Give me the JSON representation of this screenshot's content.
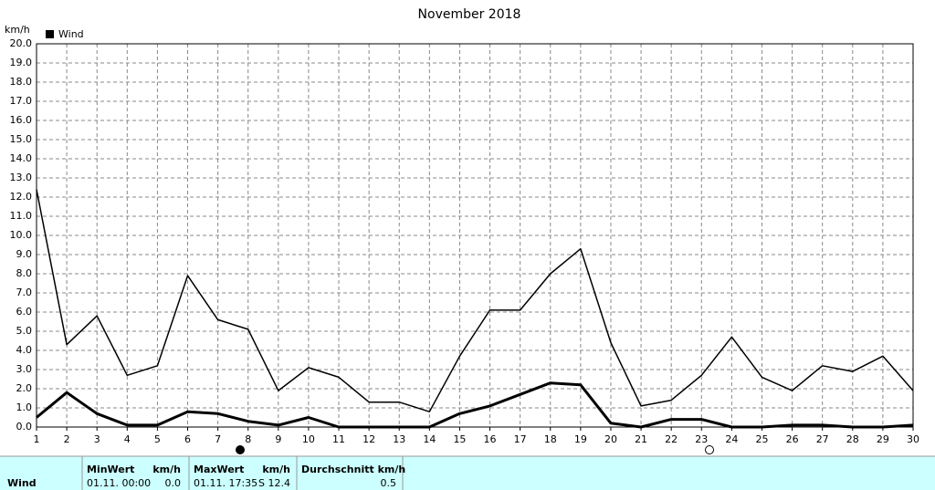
{
  "chart_data": {
    "type": "line",
    "title": "November 2018",
    "y_label": "km/h",
    "x": [
      1,
      2,
      3,
      4,
      5,
      6,
      7,
      8,
      9,
      10,
      11,
      12,
      13,
      14,
      15,
      16,
      17,
      18,
      19,
      20,
      21,
      22,
      23,
      24,
      25,
      26,
      27,
      28,
      29,
      30
    ],
    "xlim": [
      1,
      30
    ],
    "xticks": [
      1,
      2,
      3,
      4,
      5,
      6,
      7,
      8,
      9,
      10,
      11,
      12,
      13,
      14,
      15,
      16,
      17,
      18,
      19,
      20,
      21,
      22,
      23,
      24,
      25,
      26,
      27,
      28,
      29,
      30
    ],
    "ylim": [
      0,
      20
    ],
    "yticks": [
      {
        "value": 0,
        "label": "0.0"
      },
      {
        "value": 1,
        "label": "1.0"
      },
      {
        "value": 2,
        "label": "2.0"
      },
      {
        "value": 3,
        "label": "3.0"
      },
      {
        "value": 4,
        "label": "4.0"
      },
      {
        "value": 5,
        "label": "5.0"
      },
      {
        "value": 6,
        "label": "6.0"
      },
      {
        "value": 7,
        "label": "7.0"
      },
      {
        "value": 8,
        "label": "8.0"
      },
      {
        "value": 9,
        "label": "9.0"
      },
      {
        "value": 10,
        "label": "10.0"
      },
      {
        "value": 11,
        "label": "11.0"
      },
      {
        "value": 12,
        "label": "12.0"
      },
      {
        "value": 13,
        "label": "13.0"
      },
      {
        "value": 14,
        "label": "14.0"
      },
      {
        "value": 15,
        "label": "15.0"
      },
      {
        "value": 16,
        "label": "16.0"
      },
      {
        "value": 17,
        "label": "17.0"
      },
      {
        "value": 18,
        "label": "18.0"
      },
      {
        "value": 19,
        "label": "19.0"
      },
      {
        "value": 20,
        "label": "20.0"
      }
    ],
    "grid": true,
    "series": [
      {
        "name": "Wind",
        "color": "#000000",
        "width": 3,
        "values": [
          0.5,
          1.8,
          0.7,
          0.1,
          0.1,
          0.8,
          0.7,
          0.3,
          0.1,
          0.5,
          0,
          0,
          0,
          0,
          0.7,
          1.1,
          1.7,
          2.3,
          2.2,
          0.2,
          0,
          0.4,
          0.4,
          0,
          0,
          0.1,
          0.1,
          0,
          0,
          0.1
        ]
      },
      {
        "color": "#000000",
        "width": 1.5,
        "values": [
          12.4,
          4.3,
          5.8,
          2.7,
          3.2,
          7.9,
          5.6,
          5.1,
          1.9,
          3.1,
          2.6,
          1.3,
          1.3,
          0.8,
          3.7,
          6.1,
          6.1,
          8.0,
          9.3,
          4.4,
          1.1,
          1.4,
          2.7,
          4.7,
          2.6,
          1.9,
          3.2,
          2.9,
          3.7,
          1.9
        ]
      }
    ]
  },
  "table": {
    "row_label": "Wind",
    "min": {
      "header": "MinWert",
      "unit": "km/h",
      "time": "01.11.  00:00",
      "value": "0.0"
    },
    "max": {
      "header": "MaxWert",
      "unit": "km/h",
      "time": "01.11.  17:35",
      "value": "S 12.4"
    },
    "avg": {
      "header": "Durchschnitt km/h",
      "value": "0.5"
    }
  }
}
